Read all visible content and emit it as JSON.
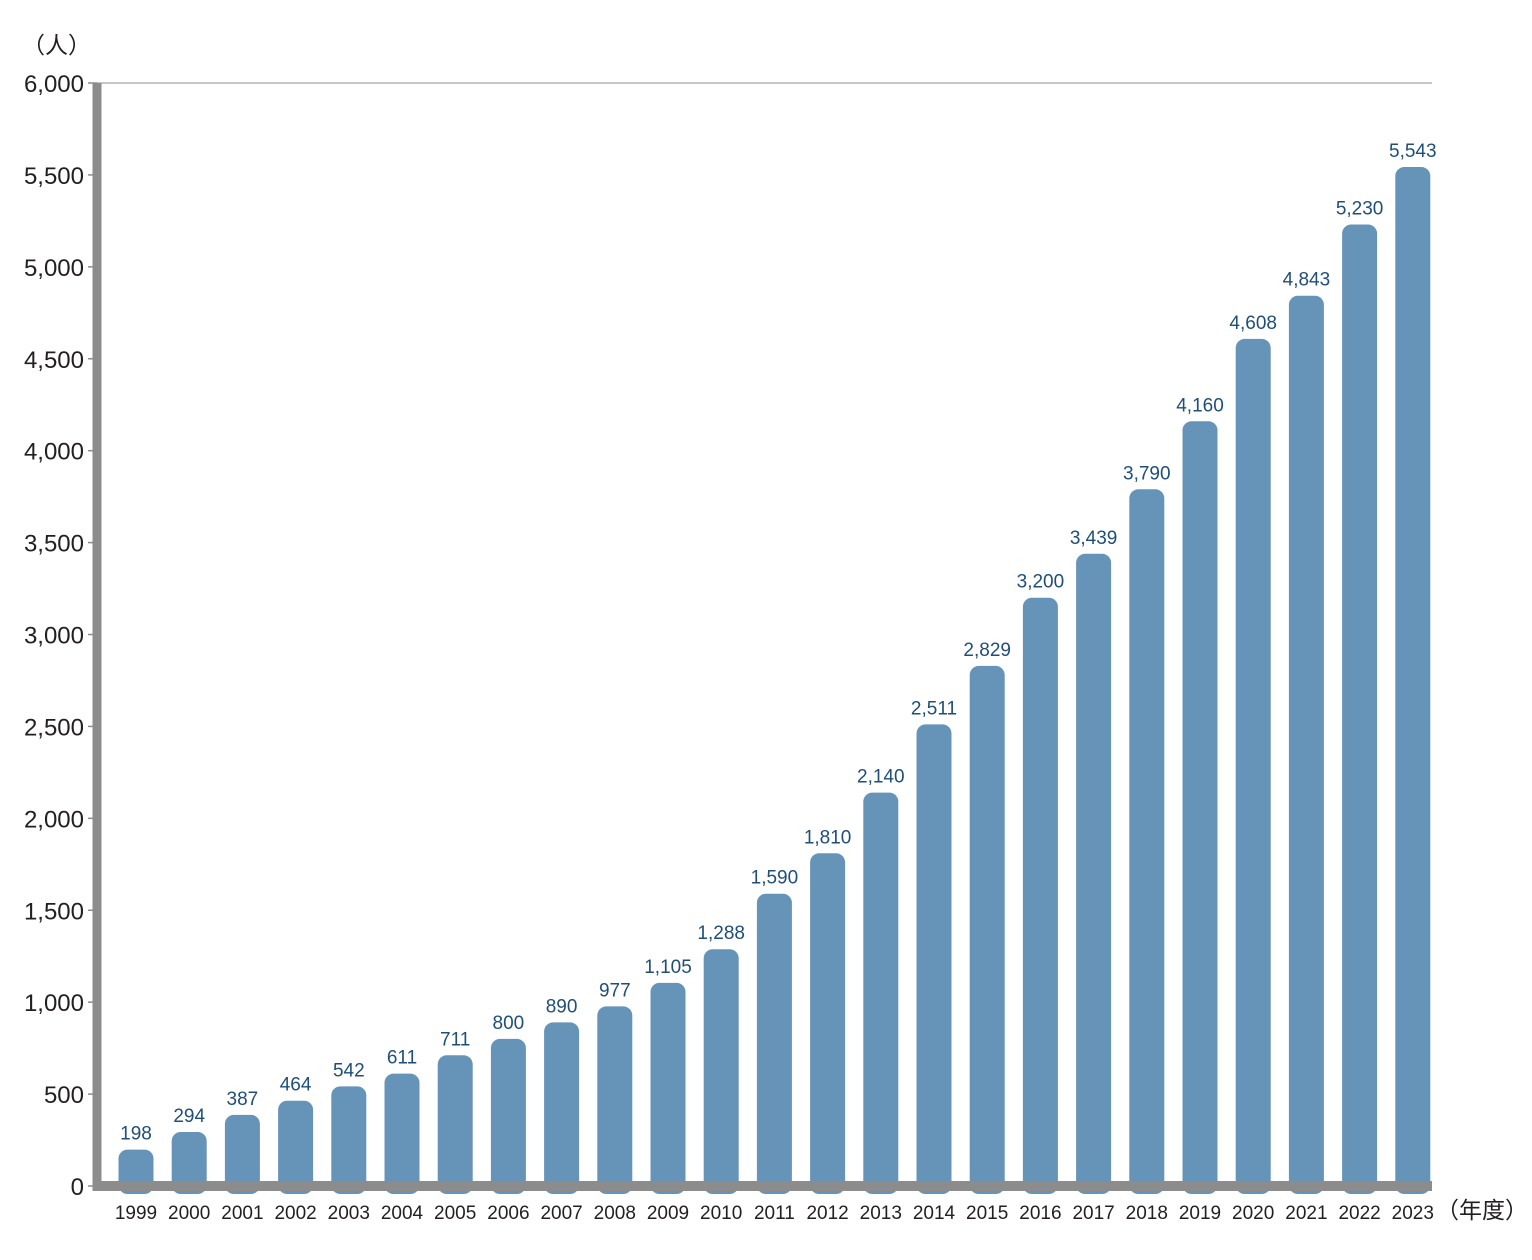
{
  "chart_data": {
    "type": "bar",
    "title": "",
    "xlabel": "",
    "ylabel": "",
    "y_unit": "（人）",
    "x_unit": "（年度）",
    "ylim": [
      0,
      6000
    ],
    "yticks": [
      "0",
      "500",
      "1,000",
      "1,500",
      "2,000",
      "2,500",
      "3,000",
      "3,500",
      "4,000",
      "4,500",
      "5,000",
      "5,500",
      "6,000"
    ],
    "categories": [
      "1999",
      "2000",
      "2001",
      "2002",
      "2003",
      "2004",
      "2005",
      "2006",
      "2007",
      "2008",
      "2009",
      "2010",
      "2011",
      "2012",
      "2013",
      "2014",
      "2015",
      "2016",
      "2017",
      "2018",
      "2019",
      "2020",
      "2021",
      "2022",
      "2023"
    ],
    "values": [
      198,
      294,
      387,
      464,
      542,
      611,
      711,
      800,
      890,
      977,
      1105,
      1288,
      1590,
      1810,
      2140,
      2511,
      2829,
      3200,
      3439,
      3790,
      4160,
      4608,
      4843,
      5230,
      5543
    ],
    "value_labels": [
      "198",
      "294",
      "387",
      "464",
      "542",
      "611",
      "711",
      "800",
      "890",
      "977",
      "1,105",
      "1,288",
      "1,590",
      "1,810",
      "2,140",
      "2,511",
      "2,829",
      "3,200",
      "3,439",
      "3,790",
      "4,160",
      "4,608",
      "4,843",
      "5,230",
      "5,543"
    ],
    "grid": false,
    "legend": "none",
    "colors": {
      "bar": "#6694b8",
      "data_label": "#1f4e79",
      "axis": "#8c8c8c",
      "top_line": "#b3b3b3",
      "text": "#231f20"
    }
  }
}
